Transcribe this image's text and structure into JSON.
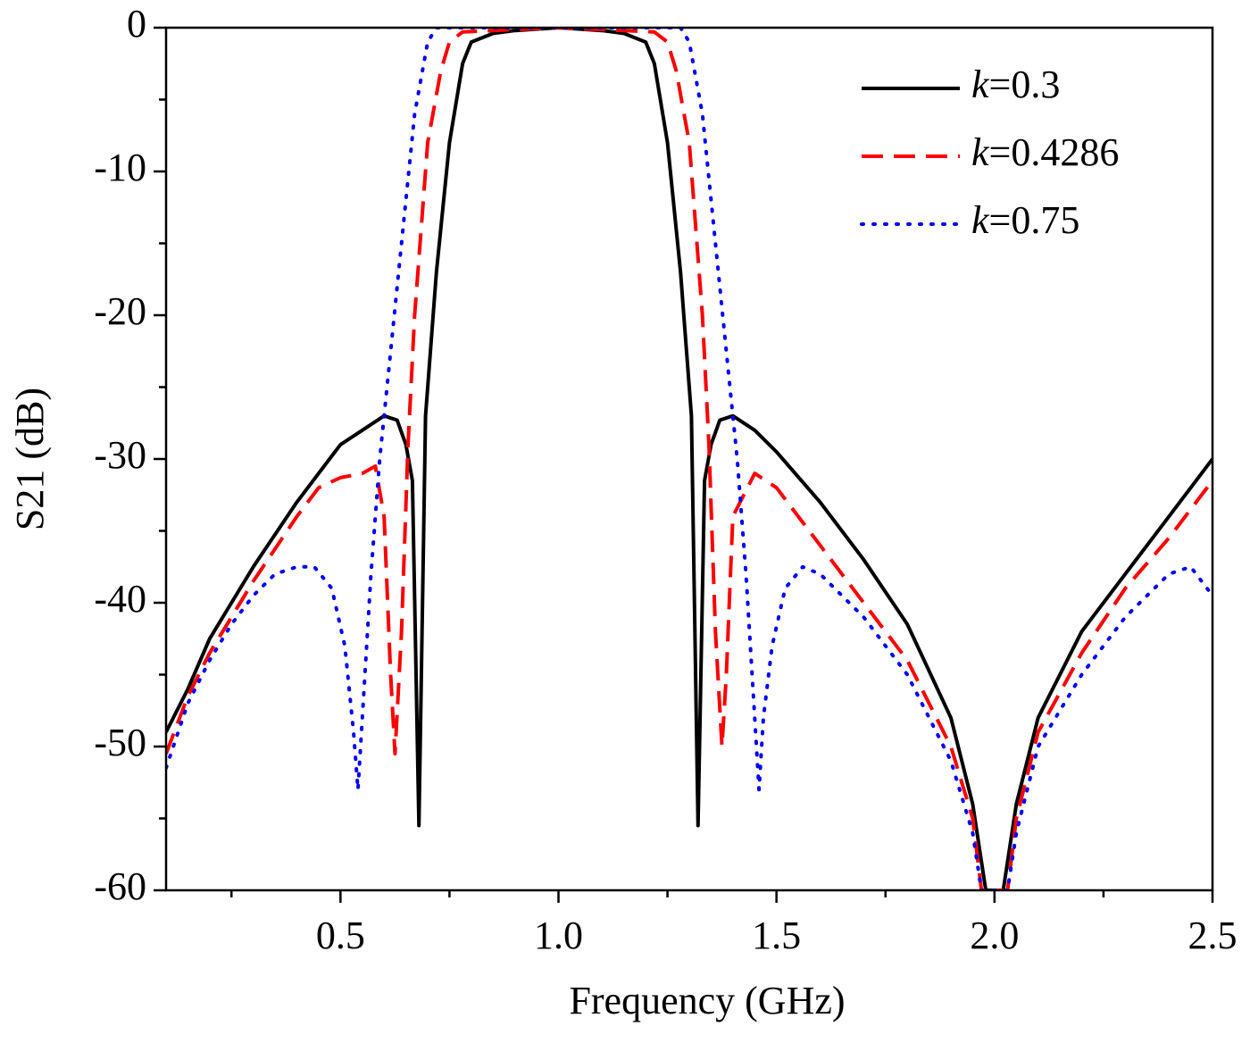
{
  "chart_data": {
    "type": "line",
    "xlabel": "Frequency (GHz)",
    "ylabel": "S21 (dB)",
    "xlim": [
      0.1,
      2.5
    ],
    "ylim": [
      -60,
      0
    ],
    "xticks": [
      0.5,
      {
        "value": 1,
        "label": "1.0"
      },
      1.5,
      {
        "value": 2,
        "label": "2.0"
      },
      2.5
    ],
    "yticks": [
      0,
      -10,
      -20,
      -30,
      -40,
      -50,
      -60
    ],
    "legend": "upper-right",
    "series": [
      {
        "name": "k=0.3",
        "color": "#000000",
        "style": "solid",
        "x": [
          0.1,
          0.15,
          0.2,
          0.3,
          0.4,
          0.5,
          0.55,
          0.6,
          0.63,
          0.65,
          0.665,
          0.68,
          0.695,
          0.72,
          0.75,
          0.78,
          0.8,
          0.85,
          0.9,
          1.0,
          1.1,
          1.15,
          1.2,
          1.22,
          1.25,
          1.28,
          1.305,
          1.32,
          1.335,
          1.35,
          1.37,
          1.4,
          1.45,
          1.5,
          1.6,
          1.7,
          1.8,
          1.9,
          1.95,
          1.97,
          1.98,
          2.02,
          2.03,
          2.05,
          2.1,
          2.2,
          2.3,
          2.4,
          2.5
        ],
        "values": [
          -49,
          -46,
          -42.5,
          -37.5,
          -33,
          -29,
          -28,
          -27,
          -27.3,
          -29,
          -31.5,
          -55.5,
          -27,
          -17,
          -8,
          -2.5,
          -1,
          -0.4,
          -0.2,
          0,
          -0.2,
          -0.4,
          -1,
          -2.5,
          -8,
          -17,
          -27,
          -55.5,
          -31.5,
          -29,
          -27.3,
          -27,
          -28,
          -29.5,
          -33,
          -37,
          -41.5,
          -48,
          -54,
          -58,
          -60,
          -60,
          -58,
          -54,
          -48,
          -42,
          -38,
          -34,
          -30
        ]
      },
      {
        "name": "k=0.4286",
        "color": "#ff0000",
        "style": "dashed",
        "x": [
          0.1,
          0.15,
          0.2,
          0.3,
          0.4,
          0.45,
          0.5,
          0.55,
          0.58,
          0.6,
          0.615,
          0.625,
          0.64,
          0.655,
          0.67,
          0.7,
          0.73,
          0.75,
          0.78,
          0.85,
          1.0,
          1.15,
          1.22,
          1.25,
          1.27,
          1.3,
          1.33,
          1.345,
          1.36,
          1.375,
          1.385,
          1.4,
          1.45,
          1.5,
          1.6,
          1.7,
          1.8,
          1.9,
          1.95,
          1.97,
          2.03,
          2.05,
          2.1,
          2.2,
          2.3,
          2.4,
          2.5
        ],
        "values": [
          -50.5,
          -46.5,
          -43.5,
          -38.5,
          -34,
          -32,
          -31.3,
          -31,
          -30.5,
          -34,
          -45,
          -50.5,
          -42,
          -29,
          -20,
          -8,
          -3,
          -1,
          -0.3,
          -0.2,
          0,
          -0.2,
          -0.3,
          -1,
          -3,
          -8,
          -20,
          -29,
          -42,
          -50,
          -45,
          -34,
          -31,
          -32,
          -36,
          -40,
          -44,
          -50,
          -55,
          -60,
          -60,
          -55,
          -49,
          -43.5,
          -39,
          -35.5,
          -31.5
        ]
      },
      {
        "name": "k=0.75",
        "color": "#0000ff",
        "style": "dotted",
        "x": [
          0.1,
          0.15,
          0.2,
          0.25,
          0.3,
          0.35,
          0.4,
          0.44,
          0.48,
          0.51,
          0.53,
          0.54,
          0.55,
          0.57,
          0.59,
          0.61,
          0.64,
          0.67,
          0.7,
          0.72,
          0.8,
          1.0,
          1.2,
          1.28,
          1.3,
          1.33,
          1.36,
          1.39,
          1.41,
          1.43,
          1.45,
          1.46,
          1.47,
          1.49,
          1.52,
          1.56,
          1.6,
          1.7,
          1.8,
          1.9,
          1.95,
          1.97,
          2.03,
          2.05,
          2.1,
          2.2,
          2.3,
          2.4,
          2.45,
          2.5
        ],
        "values": [
          -51.5,
          -47,
          -44,
          -41.5,
          -39.5,
          -38,
          -37.5,
          -37.5,
          -39,
          -43,
          -49,
          -53,
          -48,
          -38,
          -30,
          -24,
          -15,
          -6,
          -1,
          0,
          0,
          0,
          0,
          0,
          -1,
          -6,
          -15,
          -24,
          -30,
          -38,
          -48,
          -53,
          -48,
          -43,
          -39,
          -37.5,
          -38,
          -41,
          -45,
          -51,
          -56,
          -60,
          -60,
          -56,
          -50,
          -45,
          -41,
          -38,
          -37.5,
          -39.5
        ]
      }
    ]
  }
}
